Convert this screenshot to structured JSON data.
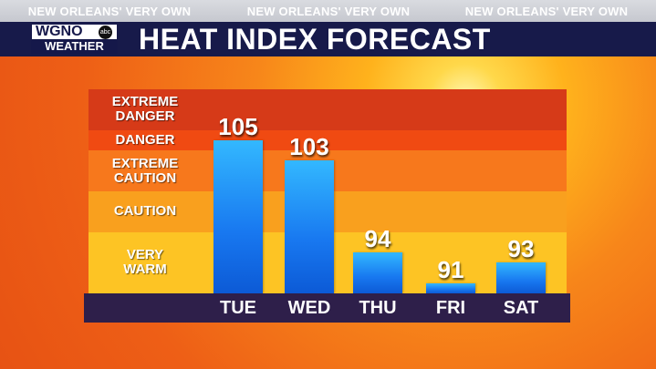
{
  "strap_text": [
    "NEW ORLEANS' VERY OWN",
    "NEW ORLEANS' VERY OWN",
    "NEW ORLEANS' VERY OWN"
  ],
  "logo": {
    "call_sign": "WGNO",
    "network": "abc",
    "subtitle": "WEATHER"
  },
  "colors": {
    "title_bar": "#171a4a",
    "bar": "#1a86f2",
    "axis_bar": "#2e1f4a",
    "zone_extreme_danger": "#d63a18",
    "zone_danger": "#f04a12",
    "zone_extreme_caution": "#f7781c",
    "zone_caution": "#f9a01e",
    "zone_very_warm": "#fdc424"
  },
  "chart_data": {
    "type": "bar",
    "title": "HEAT INDEX FORECAST",
    "categories": [
      "TUE",
      "WED",
      "THU",
      "FRI",
      "SAT"
    ],
    "values": [
      105,
      103,
      94,
      91,
      93
    ],
    "ylim": [
      90,
      110
    ],
    "zones": [
      {
        "label": [
          "EXTREME",
          "DANGER"
        ],
        "from": 106,
        "to": 110,
        "color": "#d63a18"
      },
      {
        "label": [
          "DANGER"
        ],
        "from": 104,
        "to": 106,
        "color": "#f04a12"
      },
      {
        "label": [
          "EXTREME",
          "CAUTION"
        ],
        "from": 100,
        "to": 104,
        "color": "#f7781c"
      },
      {
        "label": [
          "CAUTION"
        ],
        "from": 96,
        "to": 100,
        "color": "#f9a01e"
      },
      {
        "label": [
          "VERY",
          "WARM"
        ],
        "from": 90,
        "to": 96,
        "color": "#fdc424"
      }
    ]
  }
}
